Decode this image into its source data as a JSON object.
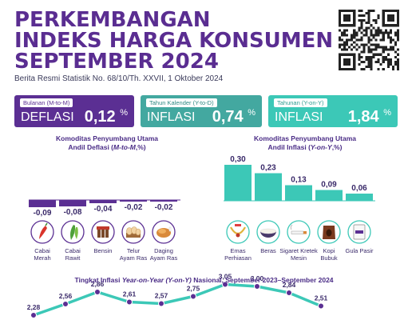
{
  "header": {
    "title_lines": [
      "PERKEMBANGAN",
      "INDEKS HARGA KONSUMEN",
      "SEPTEMBER 2024"
    ],
    "subtitle": "Berita Resmi Statistik No. 68/10/Th. XXVII, 1 Oktober 2024"
  },
  "cards": [
    {
      "label": "Bulanan (M-to-M)",
      "kind": "DEFLASI",
      "value": "0,12",
      "unit": "%"
    },
    {
      "label": "Tahun Kalender (Y-to-D)",
      "kind": "INFLASI",
      "value": "0,74",
      "unit": "%"
    },
    {
      "label": "Tahunan (Y-on-Y)",
      "kind": "INFLASI",
      "value": "1,84",
      "unit": "%"
    }
  ],
  "deflasi_title": {
    "line1": "Komoditas Penyumbang Utama",
    "line2a": "Andil Deflasi (",
    "line2b": "M-to-M",
    "line2c": ",%)"
  },
  "inflasi_title": {
    "line1": "Komoditas Penyumbang Utama",
    "line2a": "Andil Inflasi (",
    "line2b": "Y-on-Y",
    "line2c": ",%)"
  },
  "line_title": {
    "a": "Tingkat Inflasi ",
    "b": "Year-on-Year (Y-on-Y)",
    "c": " Nasional, September 2023–September 2024"
  },
  "colors": {
    "purple": "#5b2f93",
    "teal": "#3cc8b7",
    "teal_dark": "#43a8a0"
  },
  "chart_data": [
    {
      "type": "bar",
      "categories": [
        [
          "Cabai",
          "Merah"
        ],
        [
          "Cabai",
          "Rawit"
        ],
        [
          "Bensin"
        ],
        [
          "Telur",
          "Ayam Ras"
        ],
        [
          "Daging",
          "Ayam Ras"
        ]
      ],
      "values": [
        -0.09,
        -0.08,
        -0.04,
        -0.02,
        -0.02
      ],
      "labels": [
        "-0,09",
        "-0,08",
        "-0,04",
        "-0,02",
        "-0,02"
      ],
      "icons": [
        "chili-red-icon",
        "chili-green-icon",
        "fuel-pump-icon",
        "eggs-icon",
        "chicken-icon"
      ]
    },
    {
      "type": "bar",
      "categories": [
        [
          "Emas",
          "Perhiasan"
        ],
        [
          "Beras"
        ],
        [
          "Sigaret Kretek",
          "Mesin"
        ],
        [
          "Kopi",
          "Bubuk"
        ],
        [
          "Gula Pasir"
        ]
      ],
      "values": [
        0.3,
        0.23,
        0.13,
        0.09,
        0.06
      ],
      "labels": [
        "0,30",
        "0,23",
        "0,13",
        "0,09",
        "0,06"
      ],
      "icons": [
        "jewelry-icon",
        "rice-bowl-icon",
        "cigarette-icon",
        "coffee-bag-icon",
        "sugar-pack-icon"
      ]
    },
    {
      "type": "line",
      "values": [
        2.28,
        2.56,
        2.86,
        2.61,
        2.57,
        2.75,
        3.05,
        3.0,
        2.84,
        2.51
      ],
      "labels": [
        "2,28",
        "2,56",
        "2,86",
        "2,61",
        "2,57",
        "2,75",
        "3,05",
        "3,00",
        "2,84",
        "2,51"
      ]
    }
  ]
}
